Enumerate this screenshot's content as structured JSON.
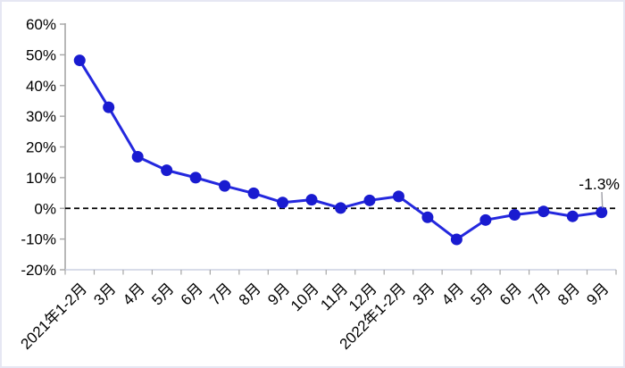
{
  "figure": {
    "background": "#ffffff",
    "border_color": "#e6e7f3"
  },
  "chart_data": {
    "type": "line",
    "title": "",
    "xlabel": "",
    "ylabel": "",
    "categories": [
      "2021年1-2月",
      "3月",
      "4月",
      "5月",
      "6月",
      "7月",
      "8月",
      "9月",
      "10月",
      "11月",
      "12月",
      "2022年1-2月",
      "3月",
      "4月",
      "5月",
      "6月",
      "7月",
      "8月",
      "9月"
    ],
    "values": [
      48.2,
      32.9,
      16.8,
      12.4,
      10.0,
      7.3,
      4.9,
      1.9,
      2.8,
      0.1,
      2.6,
      3.9,
      -2.9,
      -10.1,
      -3.8,
      -2.1,
      -1.0,
      -2.6,
      -1.3
    ],
    "ylim": [
      -20,
      60
    ],
    "ytick_step": 10,
    "ytick_labels": [
      "60%",
      "50%",
      "40%",
      "30%",
      "20%",
      "10%",
      "0%",
      "-10%",
      "-20%"
    ],
    "grid": false,
    "legend": "none",
    "zero_line_style": "dashed-black",
    "annotation": {
      "text": "-1.3%",
      "target_index": 18
    },
    "colors": {
      "line": "#2428de",
      "marker": "#191bd0",
      "axis": "#a6a6a6",
      "category_axis": "#ccd0e2",
      "tick": "#a6a6a6",
      "zero_line": "#000000",
      "leader_line": "#9e9ea6",
      "label_text": "#000000"
    }
  }
}
